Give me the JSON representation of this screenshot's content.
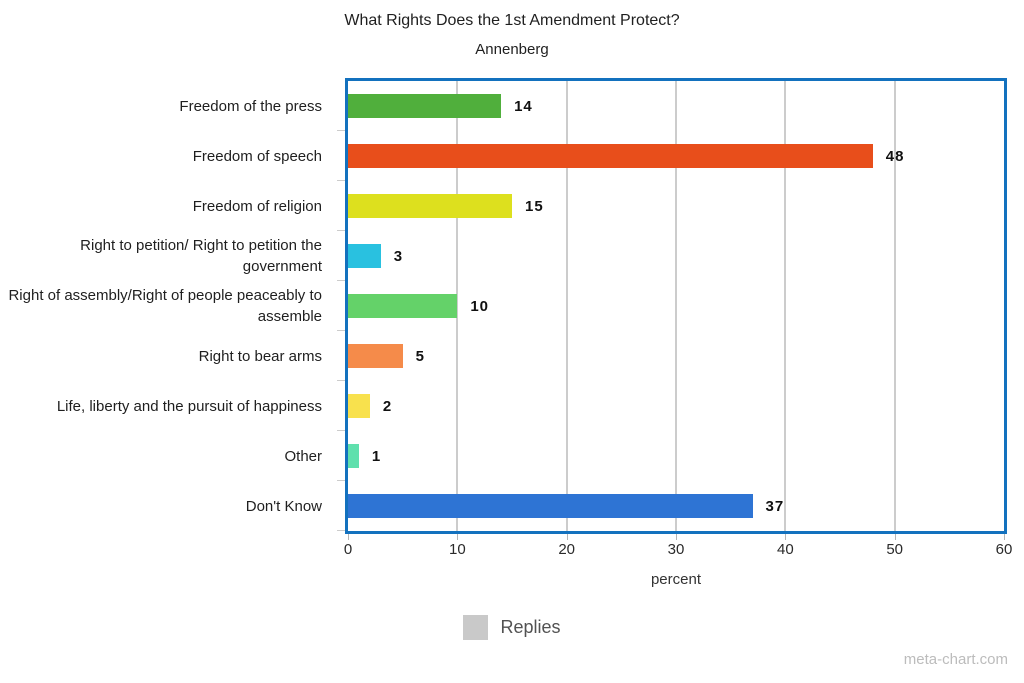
{
  "chart_data": {
    "type": "bar",
    "orientation": "horizontal",
    "title": "What Rights Does the 1st Amendment Protect?",
    "subtitle": "Annenberg",
    "xlabel": "percent",
    "xlim": [
      0,
      60
    ],
    "xticks": [
      0,
      10,
      20,
      30,
      40,
      50,
      60
    ],
    "grid": true,
    "value_labels_shown": true,
    "categories": [
      "Freedom of the press",
      "Freedom of speech",
      "Freedom of religion",
      "Right to petition/ Right to petition the government",
      "Right of assembly/Right of people peaceably to assemble",
      "Right to bear arms",
      "Life, liberty and the pursuit of happiness",
      "Other",
      "Don't Know"
    ],
    "values": [
      14,
      48,
      15,
      3,
      10,
      5,
      2,
      1,
      37
    ],
    "bar_colors": [
      "#50af3c",
      "#e84e1b",
      "#dde01e",
      "#29c1e0",
      "#64d269",
      "#f58b4a",
      "#f8e14d",
      "#5fe0ad",
      "#2e74d4"
    ],
    "legend": {
      "position": "bottom",
      "entries": [
        {
          "label": "Replies",
          "swatch_color": "#c9c9c9"
        }
      ]
    }
  },
  "colors": {
    "plot_border": "#1371be",
    "gridline": "#cccccc",
    "axis_tick": "#b5b5b5",
    "text": "#1f1f1f",
    "legend_text": "#525252",
    "watermark_text": "#bcbcbc"
  },
  "watermark": "meta-chart.com"
}
